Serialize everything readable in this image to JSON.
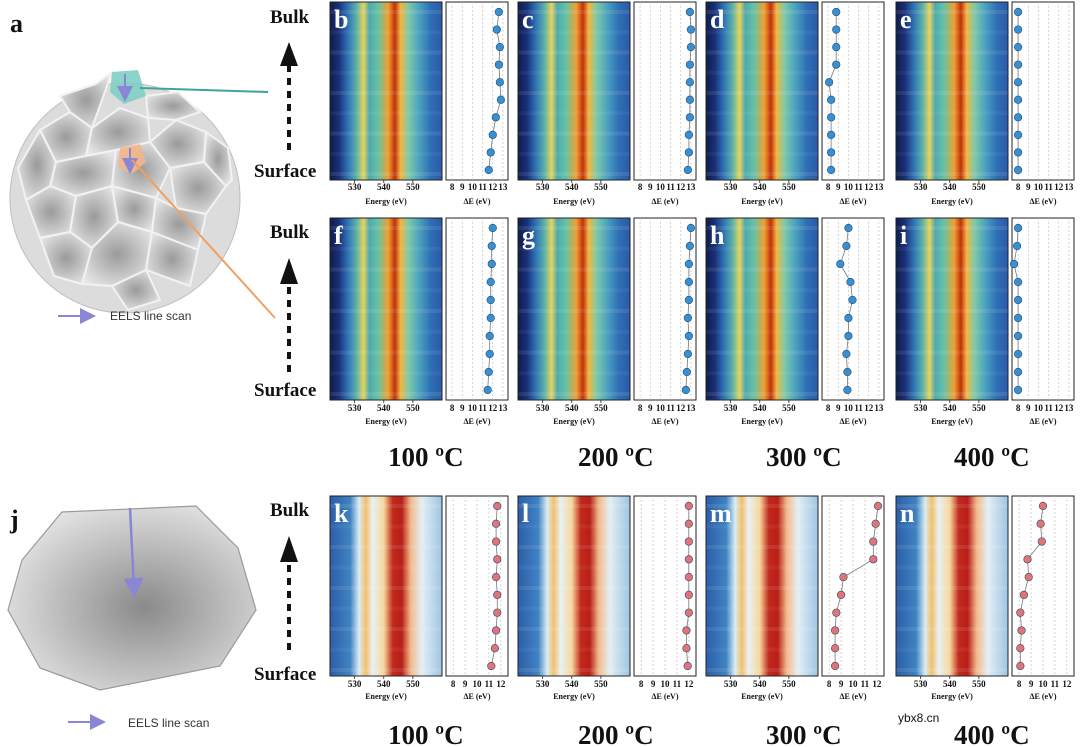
{
  "figure": {
    "panel_a_label": "a",
    "panel_j_label": "j",
    "legend_text": "EELS line scan",
    "bulk_label": "Bulk",
    "surface_label": "Surface",
    "energy_axis_label": "Energy (eV)",
    "delta_axis_label": "ΔE (eV)",
    "temperatures": [
      "100 ºC",
      "200 ºC",
      "300 ºC",
      "400 ºC"
    ],
    "watermark": "ybx8.cn",
    "colors": {
      "series_blue": "#3a8fd0",
      "series_red": "#e57373",
      "arrow_purple": "#8a86d6",
      "teal_line": "#3aa79a",
      "orange_line": "#f0a060"
    }
  },
  "rows": [
    {
      "energy_ticks": [
        "530",
        "540",
        "550"
      ],
      "delta_ticks": [
        "8",
        "9",
        "10",
        "11",
        "12",
        "13"
      ],
      "panels": [
        {
          "label": "b",
          "delta_values": [
            12.6,
            12.4,
            12.7,
            12.6,
            12.7,
            12.8,
            12.3,
            12.0,
            11.8,
            11.6
          ]
        },
        {
          "label": "c",
          "delta_values": [
            12.9,
            13.0,
            13.0,
            12.9,
            12.9,
            12.9,
            12.9,
            12.8,
            12.8,
            12.7
          ]
        },
        {
          "label": "d",
          "delta_values": [
            8.8,
            8.8,
            8.8,
            8.8,
            8.1,
            8.3,
            8.3,
            8.3,
            8.3,
            8.3
          ]
        },
        {
          "label": "e",
          "delta_values": [
            8.0,
            8.0,
            8.0,
            8.0,
            8.0,
            8.0,
            8.0,
            8.0,
            8.0,
            8.0
          ]
        }
      ]
    },
    {
      "energy_ticks": [
        "530",
        "540",
        "550"
      ],
      "delta_ticks": [
        "8",
        "9",
        "10",
        "11",
        "12",
        "13"
      ],
      "panels": [
        {
          "label": "f",
          "delta_values": [
            12.0,
            11.9,
            11.9,
            11.8,
            11.8,
            11.8,
            11.7,
            11.7,
            11.6,
            11.5
          ]
        },
        {
          "label": "g",
          "delta_values": [
            13.0,
            12.9,
            12.8,
            12.8,
            12.8,
            12.7,
            12.8,
            12.7,
            12.6,
            12.5
          ]
        },
        {
          "label": "h",
          "delta_values": [
            10.0,
            9.8,
            9.2,
            10.2,
            10.4,
            10.0,
            10.0,
            9.8,
            9.9,
            9.9
          ]
        },
        {
          "label": "i",
          "delta_values": [
            8.0,
            7.9,
            7.6,
            8.0,
            8.0,
            8.0,
            8.0,
            8.0,
            8.0,
            8.0
          ]
        }
      ]
    },
    {
      "energy_ticks": [
        "530",
        "540",
        "550"
      ],
      "delta_ticks": [
        "8",
        "9",
        "10",
        "11",
        "12"
      ],
      "panels": [
        {
          "label": "k",
          "delta_values": [
            11.7,
            11.6,
            11.6,
            11.7,
            11.6,
            11.7,
            11.7,
            11.6,
            11.5,
            11.2
          ]
        },
        {
          "label": "l",
          "delta_values": [
            12.0,
            12.0,
            12.0,
            12.0,
            12.0,
            12.0,
            12.0,
            11.8,
            11.8,
            11.9
          ]
        },
        {
          "label": "m",
          "delta_values": [
            12.1,
            11.9,
            11.7,
            11.7,
            9.2,
            9.0,
            8.6,
            8.5,
            8.5,
            8.5
          ]
        },
        {
          "label": "n",
          "delta_values": [
            10.0,
            9.8,
            9.9,
            8.7,
            8.8,
            8.4,
            8.1,
            8.2,
            8.1,
            8.1
          ]
        }
      ]
    }
  ]
}
